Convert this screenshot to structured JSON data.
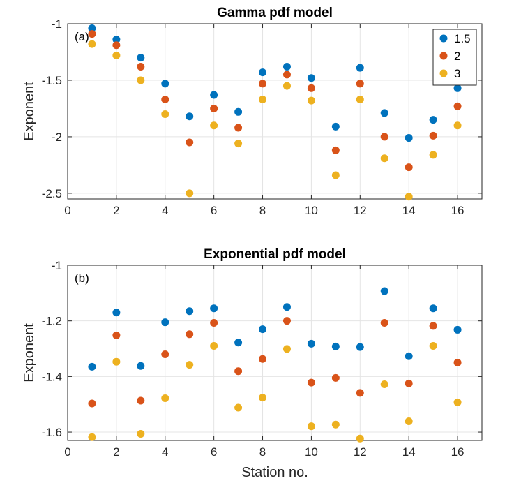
{
  "chart_data": [
    {
      "type": "scatter",
      "title": "Gamma pdf model",
      "panel_label": "(a)",
      "xlabel": "",
      "ylabel": "Exponent",
      "xlim": [
        0,
        17
      ],
      "ylim": [
        -2.55,
        -1
      ],
      "x_ticks": [
        0,
        2,
        4,
        6,
        8,
        10,
        12,
        14,
        16
      ],
      "y_ticks": [
        -1,
        -1.5,
        -2,
        -2.5
      ],
      "x_tick_labels": [
        "0",
        "2",
        "4",
        "6",
        "8",
        "10",
        "12",
        "14",
        "16"
      ],
      "y_tick_labels": [
        "-1",
        "-1.5",
        "-2",
        "-2.5"
      ],
      "x": [
        1,
        2,
        3,
        4,
        5,
        6,
        7,
        8,
        9,
        10,
        11,
        12,
        13,
        14,
        15,
        16
      ],
      "grid": true,
      "legend": {
        "placement": "top-right",
        "entries": [
          "1.5",
          "2",
          "3"
        ]
      },
      "series": [
        {
          "name": "1.5",
          "color": "#0072BD",
          "values": [
            -1.04,
            -1.14,
            -1.3,
            -1.53,
            -1.82,
            -1.63,
            -1.78,
            -1.43,
            -1.38,
            -1.48,
            -1.91,
            -1.39,
            -1.79,
            -2.01,
            -1.85,
            -1.57
          ]
        },
        {
          "name": "2",
          "color": "#D95319",
          "values": [
            -1.09,
            -1.19,
            -1.38,
            -1.67,
            -2.05,
            -1.75,
            -1.92,
            -1.53,
            -1.45,
            -1.57,
            -2.12,
            -1.53,
            -2.0,
            -2.27,
            -1.99,
            -1.73
          ]
        },
        {
          "name": "3",
          "color": "#EDB120",
          "values": [
            -1.18,
            -1.28,
            -1.5,
            -1.8,
            -2.5,
            -1.9,
            -2.06,
            -1.67,
            -1.55,
            -1.68,
            -2.34,
            -1.67,
            -2.19,
            -2.53,
            -2.16,
            -1.9
          ]
        }
      ]
    },
    {
      "type": "scatter",
      "title": "Exponential pdf model",
      "panel_label": "(b)",
      "xlabel": "Station no.",
      "ylabel": "Exponent",
      "xlim": [
        0,
        17
      ],
      "ylim": [
        -1.63,
        -1
      ],
      "x_ticks": [
        0,
        2,
        4,
        6,
        8,
        10,
        12,
        14,
        16
      ],
      "y_ticks": [
        -1,
        -1.2,
        -1.4,
        -1.6
      ],
      "x_tick_labels": [
        "0",
        "2",
        "4",
        "6",
        "8",
        "10",
        "12",
        "14",
        "16"
      ],
      "y_tick_labels": [
        "-1",
        "-1.2",
        "-1.4",
        "-1.6"
      ],
      "x": [
        1,
        2,
        3,
        4,
        5,
        6,
        7,
        8,
        9,
        10,
        11,
        12,
        13,
        14,
        15,
        16
      ],
      "grid": true,
      "series": [
        {
          "name": "1.5",
          "color": "#0072BD",
          "values": [
            -1.365,
            -1.17,
            -1.362,
            -1.205,
            -1.165,
            -1.155,
            -1.278,
            -1.23,
            -1.15,
            -1.282,
            -1.292,
            -1.294,
            -1.093,
            -1.327,
            -1.155,
            -1.232
          ]
        },
        {
          "name": "2",
          "color": "#D95319",
          "values": [
            -1.497,
            -1.252,
            -1.487,
            -1.32,
            -1.248,
            -1.207,
            -1.381,
            -1.337,
            -1.2,
            -1.422,
            -1.405,
            -1.459,
            -1.207,
            -1.425,
            -1.218,
            -1.35
          ]
        },
        {
          "name": "3",
          "color": "#EDB120",
          "values": [
            -1.618,
            -1.347,
            -1.606,
            -1.478,
            -1.358,
            -1.29,
            -1.512,
            -1.476,
            -1.301,
            -1.579,
            -1.573,
            -1.623,
            -1.428,
            -1.561,
            -1.29,
            -1.493
          ]
        }
      ]
    }
  ]
}
